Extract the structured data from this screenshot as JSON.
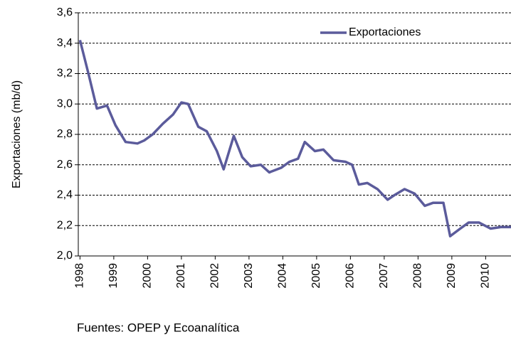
{
  "chart_data": {
    "type": "line",
    "y_label": "Exportaciones (mb/d)",
    "source": "Fuentes: OPEP y Ecoanalítica",
    "legend": "top-right",
    "grid": true,
    "xlim": [
      1997.95,
      2010.75
    ],
    "xticks": [
      1998,
      1999,
      2000,
      2001,
      2002,
      2003,
      2004,
      2005,
      2006,
      2007,
      2008,
      2009,
      2010
    ],
    "ylim": [
      2.0,
      3.6
    ],
    "yticks": [
      {
        "value": 2.0,
        "label": "2,0"
      },
      {
        "value": 2.2,
        "label": "2,2"
      },
      {
        "value": 2.4,
        "label": "2,4"
      },
      {
        "value": 2.6,
        "label": "2,6"
      },
      {
        "value": 2.8,
        "label": "2,8"
      },
      {
        "value": 3.0,
        "label": "3,0"
      },
      {
        "value": 3.2,
        "label": "3,2"
      },
      {
        "value": 3.4,
        "label": "3,4"
      },
      {
        "value": 3.6,
        "label": "3,6"
      }
    ],
    "x": [
      1998.0,
      1998.25,
      1998.5,
      1998.8,
      1999.05,
      1999.35,
      1999.7,
      1999.9,
      2000.15,
      2000.45,
      2000.75,
      2001.0,
      2001.2,
      2001.5,
      2001.75,
      2002.05,
      2002.25,
      2002.55,
      2002.8,
      2003.05,
      2003.35,
      2003.6,
      2003.95,
      2004.2,
      2004.45,
      2004.65,
      2004.95,
      2005.2,
      2005.5,
      2005.85,
      2006.05,
      2006.25,
      2006.5,
      2006.8,
      2007.1,
      2007.3,
      2007.6,
      2007.9,
      2008.2,
      2008.45,
      2008.75,
      2008.95,
      2009.25,
      2009.5,
      2009.8,
      2010.15,
      2010.45,
      2010.75
    ],
    "series": [
      {
        "name": "Exportaciones",
        "color": "#5b5b9b",
        "values": [
          3.42,
          3.2,
          2.97,
          2.99,
          2.86,
          2.75,
          2.74,
          2.76,
          2.8,
          2.87,
          2.93,
          3.01,
          3.0,
          2.85,
          2.82,
          2.69,
          2.57,
          2.79,
          2.65,
          2.59,
          2.6,
          2.55,
          2.58,
          2.62,
          2.64,
          2.75,
          2.69,
          2.7,
          2.63,
          2.62,
          2.6,
          2.47,
          2.48,
          2.44,
          2.37,
          2.4,
          2.44,
          2.41,
          2.33,
          2.35,
          2.35,
          2.13,
          2.18,
          2.22,
          2.22,
          2.18,
          2.19,
          2.19
        ]
      }
    ]
  }
}
